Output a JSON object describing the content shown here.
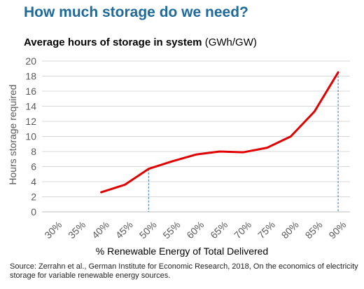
{
  "title": "How much storage do we need?",
  "subtitle_bold": "Average hours of storage in system",
  "subtitle_unit": " (GWh/GW)",
  "source": "Source: Zerrahn et al., German Institute for Economic Research, 2018, On the economics of electricity storage for variable renewable energy sources.",
  "colors": {
    "title": "#1f6a9c",
    "line": "#e00000",
    "grid": "#d9d9d9",
    "marker": "#2e75b6"
  },
  "chart_data": {
    "type": "line",
    "xlabel": "% Renewable Energy of Total Delivered",
    "ylabel": "Hours storage required",
    "categories": [
      "30%",
      "35%",
      "40%",
      "45%",
      "50%",
      "55%",
      "60%",
      "65%",
      "70%",
      "75%",
      "80%",
      "85%",
      "90%"
    ],
    "ylim": [
      0,
      20
    ],
    "yticks": [
      0,
      2,
      4,
      6,
      8,
      10,
      12,
      14,
      16,
      18,
      20
    ],
    "grid": true,
    "series": [
      {
        "values": [
          null,
          null,
          2.6,
          3.6,
          5.7,
          6.7,
          7.6,
          8.0,
          7.9,
          8.5,
          10.0,
          13.3,
          18.5
        ]
      }
    ],
    "reference_lines": [
      "50%",
      "90%"
    ]
  }
}
